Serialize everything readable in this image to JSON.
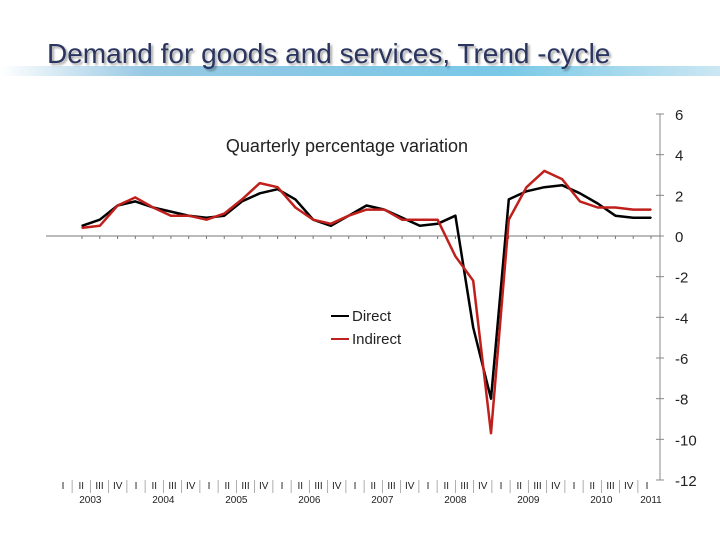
{
  "page": {
    "title": "Demand for goods and services, Trend -cycle"
  },
  "chart_data": {
    "type": "line",
    "title": "Demand for goods and services, Trend -cycle",
    "subtitle": "Quarterly percentage variation",
    "xlabel": "",
    "ylabel": "",
    "ylim": [
      -12,
      6
    ],
    "yticks": [
      6,
      4,
      2,
      0,
      -2,
      -4,
      -6,
      -8,
      -10,
      -12
    ],
    "quarter_labels": [
      "I",
      "II",
      "III",
      "IV"
    ],
    "years": [
      "2003",
      "2004",
      "2005",
      "2006",
      "2007",
      "2008",
      "2009",
      "2010",
      "2011"
    ],
    "x": [
      "2003 I",
      "2003 II",
      "2003 III",
      "2003 IV",
      "2004 I",
      "2004 II",
      "2004 III",
      "2004 IV",
      "2005 I",
      "2005 II",
      "2005 III",
      "2005 IV",
      "2006 I",
      "2006 II",
      "2006 III",
      "2006 IV",
      "2007 I",
      "2007 II",
      "2007 III",
      "2007 IV",
      "2008 I",
      "2008 II",
      "2008 III",
      "2008 IV",
      "2009 I",
      "2009 II",
      "2009 III",
      "2009 IV",
      "2010 I",
      "2010 II",
      "2010 III",
      "2010 IV",
      "2011 I"
    ],
    "legend": [
      "Direct",
      "Indirect"
    ],
    "legend_position": "center",
    "series": [
      {
        "name": "Direct",
        "color": "#000000",
        "values": [
          0.5,
          0.8,
          1.5,
          1.7,
          1.4,
          1.2,
          1.0,
          0.9,
          1.0,
          1.7,
          2.1,
          2.3,
          1.8,
          0.8,
          0.5,
          1.0,
          1.5,
          1.3,
          0.9,
          0.5,
          0.6,
          1.0,
          -4.5,
          -8.0,
          1.8,
          2.2,
          2.4,
          2.5,
          2.1,
          1.6,
          1.0,
          0.9,
          0.9
        ]
      },
      {
        "name": "Indirect",
        "color": "#c0201c",
        "values": [
          0.4,
          0.5,
          1.5,
          1.9,
          1.4,
          1.0,
          1.0,
          0.8,
          1.1,
          1.8,
          2.6,
          2.4,
          1.4,
          0.8,
          0.6,
          1.0,
          1.3,
          1.3,
          0.8,
          0.8,
          0.8,
          -1.0,
          -2.2,
          -9.7,
          0.8,
          2.4,
          3.2,
          2.8,
          1.7,
          1.4,
          1.4,
          1.3,
          1.3
        ]
      }
    ]
  }
}
